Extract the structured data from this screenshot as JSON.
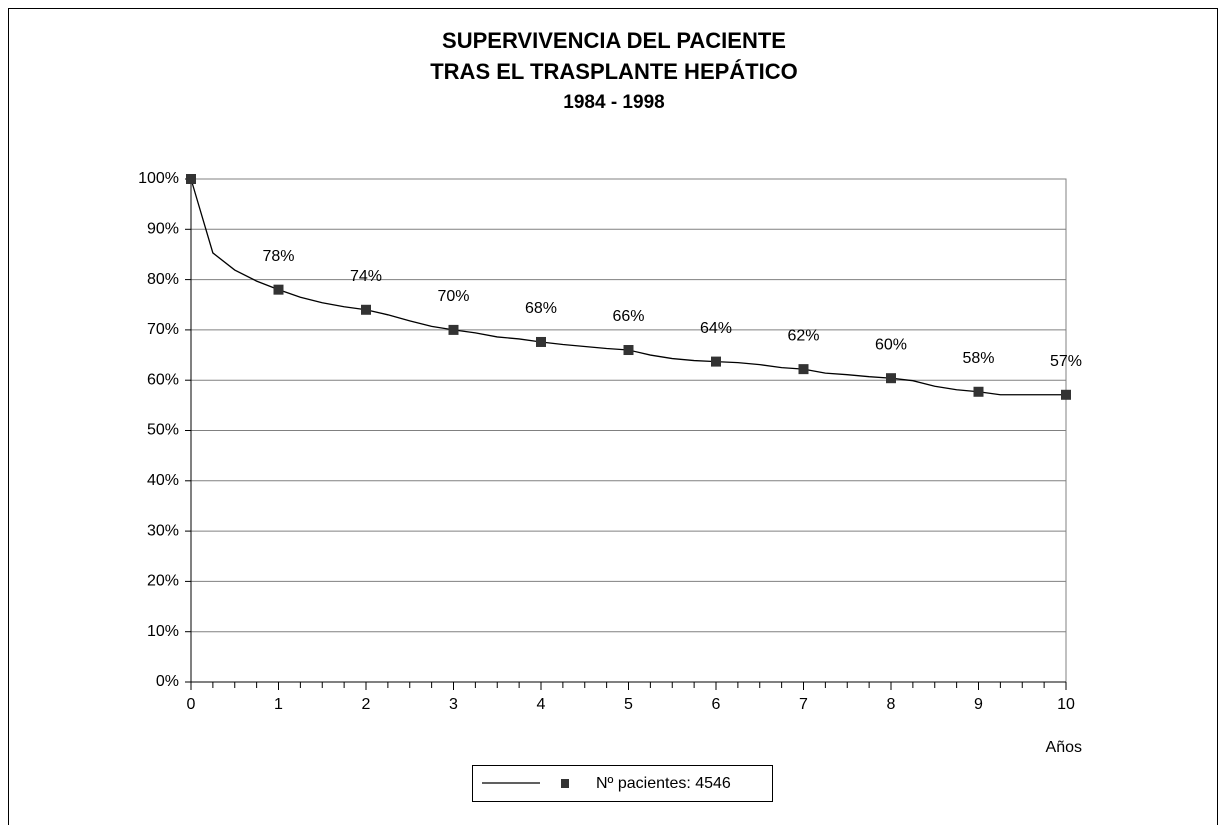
{
  "chart_data": {
    "type": "line",
    "title": "SUPERVIVENCIA DEL PACIENTE",
    "title_line2": "TRAS EL TRASPLANTE HEPÁTICO",
    "subtitle": "1984 - 1998",
    "xlabel": "Años",
    "x": [
      0,
      0.25,
      0.5,
      0.75,
      1,
      1.25,
      1.5,
      1.75,
      2,
      2.25,
      2.5,
      2.75,
      3,
      3.25,
      3.5,
      3.75,
      4,
      4.25,
      4.5,
      4.75,
      5,
      5.25,
      5.5,
      5.75,
      6,
      6.25,
      6.5,
      6.75,
      7,
      7.25,
      7.5,
      7.75,
      8,
      8.25,
      8.5,
      8.75,
      9,
      9.25,
      9.5,
      9.75,
      10
    ],
    "series": [
      {
        "name": "Nº pacientes: 4546",
        "color": "#000000",
        "values": [
          100,
          85.3,
          81.9,
          79.7,
          78,
          76.5,
          75.4,
          74.6,
          74,
          73,
          71.8,
          70.7,
          70,
          69.4,
          68.6,
          68.2,
          67.6,
          67.1,
          66.7,
          66.3,
          66,
          65,
          64.3,
          63.9,
          63.7,
          63.5,
          63.1,
          62.5,
          62.2,
          61.4,
          61.1,
          60.7,
          60.4,
          59.9,
          58.8,
          58.1,
          57.7,
          57.1,
          57.1,
          57.1,
          57.1
        ]
      }
    ],
    "markers": {
      "color": "#333333",
      "x": [
        0,
        1,
        2,
        3,
        4,
        5,
        6,
        7,
        8,
        9,
        10
      ],
      "values": [
        100,
        78,
        74,
        70,
        67.6,
        66,
        63.7,
        62.2,
        60.4,
        57.7,
        57.1
      ],
      "value_labels": [
        null,
        "78%",
        "74%",
        "70%",
        "68%",
        "66%",
        "64%",
        "62%",
        "60%",
        "58%",
        "57%"
      ]
    },
    "xlim": [
      0,
      10
    ],
    "xticks": [
      0,
      1,
      2,
      3,
      4,
      5,
      6,
      7,
      8,
      9,
      10
    ],
    "ylim": [
      0,
      100
    ],
    "yticks": [
      {
        "value": 0,
        "label": "0%"
      },
      {
        "value": 10,
        "label": "10%"
      },
      {
        "value": 20,
        "label": "20%"
      },
      {
        "value": 30,
        "label": "30%"
      },
      {
        "value": 40,
        "label": "40%"
      },
      {
        "value": 50,
        "label": "50%"
      },
      {
        "value": 60,
        "label": "60%"
      },
      {
        "value": 70,
        "label": "70%"
      },
      {
        "value": 80,
        "label": "80%"
      },
      {
        "value": 90,
        "label": "90%"
      },
      {
        "value": 100,
        "label": "100%"
      }
    ],
    "grid": true
  }
}
